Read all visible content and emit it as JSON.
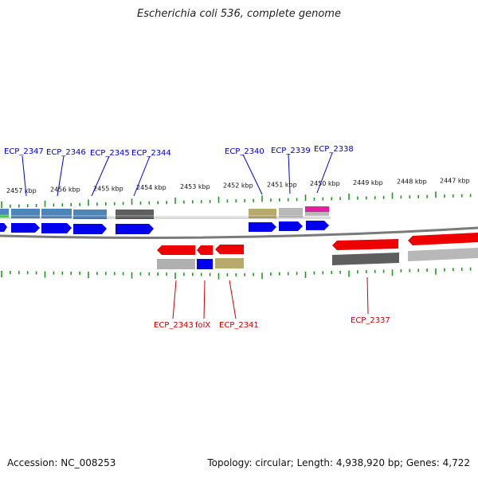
{
  "title": "Escherichia coli 536, complete genome",
  "footer": {
    "accession": "Accession: NC_008253",
    "topology": "Topology: circular; Length: 4,938,920 bp; Genes: 4,722"
  },
  "colors": {
    "backbone": "#8a8a8a",
    "ticks": "#1f9a1f",
    "forward_label": "#0000cc",
    "reverse_label": "#cc0000"
  },
  "kbp_labels": [
    "2457 kbp",
    "2456 kbp",
    "2455 kbp",
    "2454 kbp",
    "2453 kbp",
    "2452 kbp",
    "2451 kbp",
    "2450 kbp",
    "2449 kbp",
    "2448 kbp",
    "2447 kbp"
  ],
  "forward_genes": [
    {
      "name": "ECP_2347",
      "feature_color": "#4f86b9",
      "cds_color": "#0000ee"
    },
    {
      "name": "ECP_2346",
      "feature_color": "#4f86b9",
      "cds_color": "#0000ee"
    },
    {
      "name": "ECP_2345",
      "feature_color": "#4f86b9",
      "cds_color": "#0000ee"
    },
    {
      "name": "ECP_2344",
      "feature_color": "#5e5e5e",
      "cds_color": "#0000ee"
    },
    {
      "name": "ECP_2340",
      "feature_color": "#b7aa6a",
      "cds_color": "#0000ee"
    },
    {
      "name": "ECP_2339",
      "feature_color": "#b8b8b8",
      "cds_color": "#0000ee"
    },
    {
      "name": "ECP_2338",
      "feature_color": "#e020a0",
      "cds_color": "#0000ee"
    }
  ],
  "reverse_genes": [
    {
      "name": "ECP_2343",
      "feature_color": "#b0b0b0",
      "cds_color": "#ee0000"
    },
    {
      "name": "folX",
      "feature_color": "#0000ee",
      "cds_color": "#ee0000"
    },
    {
      "name": "ECP_2341",
      "feature_color": "#b7aa6a",
      "cds_color": "#ee0000"
    },
    {
      "name": "ECP_2337",
      "feature_color": "#5e5e5e",
      "cds_color": "#ee0000"
    }
  ]
}
